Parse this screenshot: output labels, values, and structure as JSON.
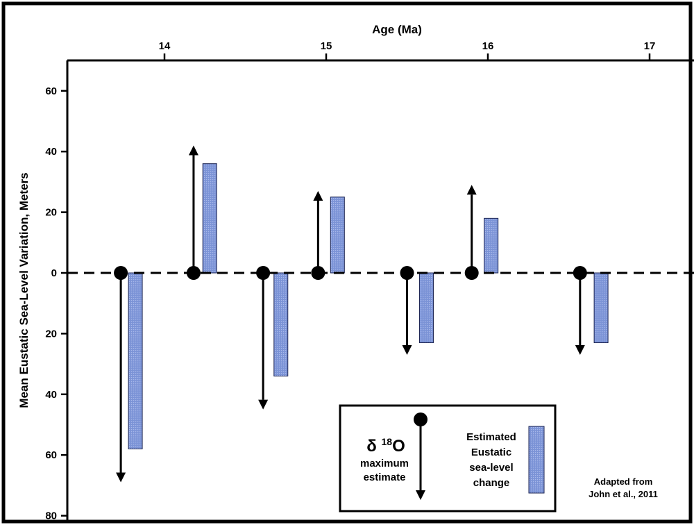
{
  "colors": {
    "bar_fill": "#7b93d6",
    "bar_stroke": "#1a2250",
    "axis": "#000000",
    "background": "#ffffff"
  },
  "chart_data": {
    "type": "bar",
    "xlabel": "Age (Ma)",
    "ylabel": "Mean Eustatic Sea-Level Variation, Meters",
    "x_axis_position": "top",
    "xlim": [
      13.4,
      17.2
    ],
    "x_ticks": [
      14,
      15,
      16,
      17
    ],
    "ylim": [
      -80,
      65
    ],
    "y_inverted_below_zero": true,
    "y_ticks": [
      {
        "value": 60,
        "label": "60"
      },
      {
        "value": 40,
        "label": "40"
      },
      {
        "value": 20,
        "label": "20"
      },
      {
        "value": 0,
        "label": "0"
      },
      {
        "value": -20,
        "label": "20"
      },
      {
        "value": -40,
        "label": "40"
      },
      {
        "value": -60,
        "label": "60"
      },
      {
        "value": -80,
        "label": "80"
      }
    ],
    "zero_line": "dashed",
    "series": [
      {
        "name": "δ 18O maximum estimate",
        "style": "arrow",
        "points": [
          {
            "x": 13.73,
            "y": -69
          },
          {
            "x": 14.18,
            "y": 42
          },
          {
            "x": 14.61,
            "y": -45
          },
          {
            "x": 14.95,
            "y": 27
          },
          {
            "x": 15.5,
            "y": -27
          },
          {
            "x": 15.9,
            "y": 29
          },
          {
            "x": 16.57,
            "y": -27
          }
        ]
      },
      {
        "name": "Estimated Eustatic sea-level change",
        "style": "bar",
        "points": [
          {
            "x": 13.82,
            "y": -58
          },
          {
            "x": 14.28,
            "y": 36
          },
          {
            "x": 14.72,
            "y": -34
          },
          {
            "x": 15.07,
            "y": 25
          },
          {
            "x": 15.62,
            "y": -23
          },
          {
            "x": 16.02,
            "y": 18
          },
          {
            "x": 16.7,
            "y": -23
          }
        ]
      }
    ]
  },
  "legend": {
    "d18o_prefix": "δ ",
    "d18o_sup": "18",
    "d18o_suffix": "O",
    "d18o_line1": "maximum",
    "d18o_line2": "estimate",
    "bar_line1": "Estimated",
    "bar_line2": "Eustatic",
    "bar_line3": "sea-level",
    "bar_line4": "change"
  },
  "annotation": {
    "line1": "Adapted from",
    "line2": "John et al., 2011"
  }
}
